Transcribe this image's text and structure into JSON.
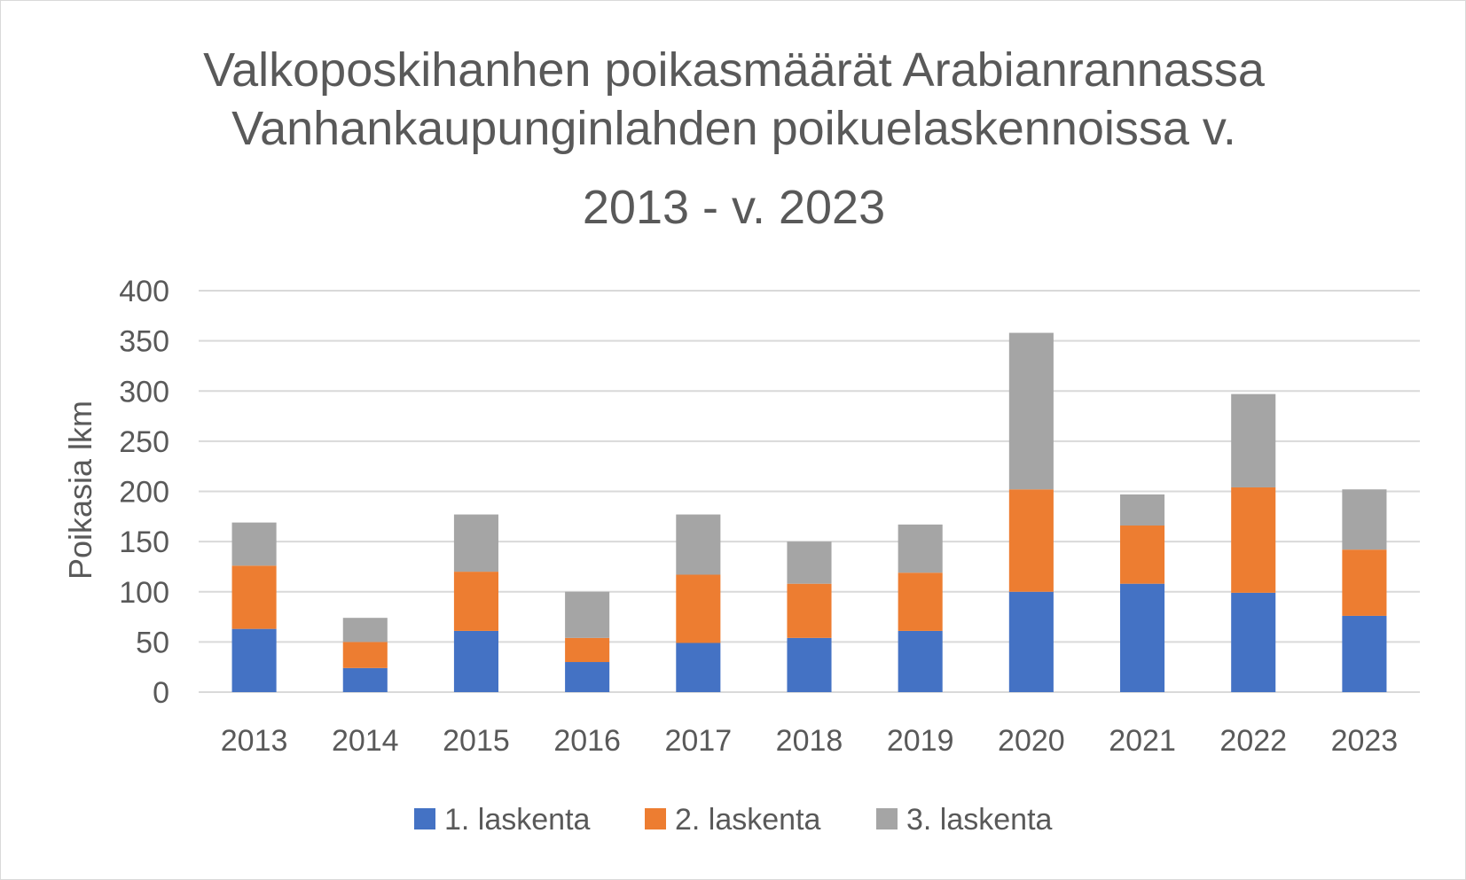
{
  "chart_data": {
    "type": "bar",
    "stacked": true,
    "title_lines": [
      "Valkoposkihanhen poikasmäärät Arabianrannassa",
      "Vanhankaupunginlahden poikuelaskennoissa v.",
      "2013 - v. 2023"
    ],
    "xlabel": "",
    "ylabel": "Poikasia lkm",
    "ylim": [
      0,
      400
    ],
    "yticks": [
      0,
      50,
      100,
      150,
      200,
      250,
      300,
      350,
      400
    ],
    "grid": true,
    "legend_position": "bottom",
    "categories": [
      "2013",
      "2014",
      "2015",
      "2016",
      "2017",
      "2018",
      "2019",
      "2020",
      "2021",
      "2022",
      "2023"
    ],
    "series": [
      {
        "name": "1. laskenta",
        "color": "#4472c4",
        "values": [
          63,
          24,
          61,
          30,
          49,
          54,
          61,
          100,
          108,
          99,
          76
        ]
      },
      {
        "name": "2. laskenta",
        "color": "#ed7d31",
        "values": [
          63,
          26,
          59,
          24,
          68,
          54,
          58,
          102,
          58,
          105,
          66
        ]
      },
      {
        "name": "3. laskenta",
        "color": "#a5a5a5",
        "values": [
          43,
          24,
          57,
          46,
          60,
          42,
          48,
          156,
          31,
          93,
          60
        ]
      }
    ]
  }
}
